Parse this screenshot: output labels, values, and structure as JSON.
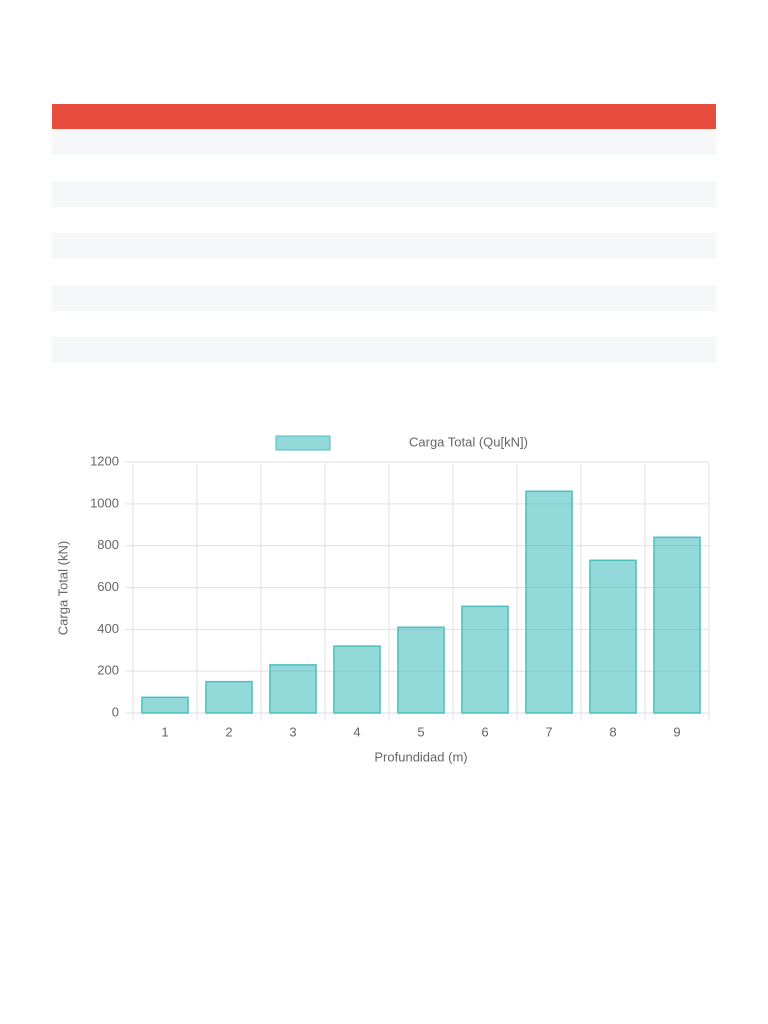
{
  "chart_data": {
    "type": "bar",
    "legend": "Carga Total (Qu[kN])",
    "y_label": "Carga Total (kN)",
    "x_label": "Profundidad (m)",
    "categories": [
      "1",
      "2",
      "3",
      "4",
      "5",
      "6",
      "7",
      "8",
      "9"
    ],
    "values": [
      75,
      150,
      230,
      320,
      410,
      510,
      1060,
      730,
      840
    ],
    "color": "#4bc0c0",
    "ylim": [
      0,
      1200
    ],
    "yticks": [
      0,
      200,
      400,
      600,
      800,
      1000,
      1200
    ],
    "grid": true
  }
}
